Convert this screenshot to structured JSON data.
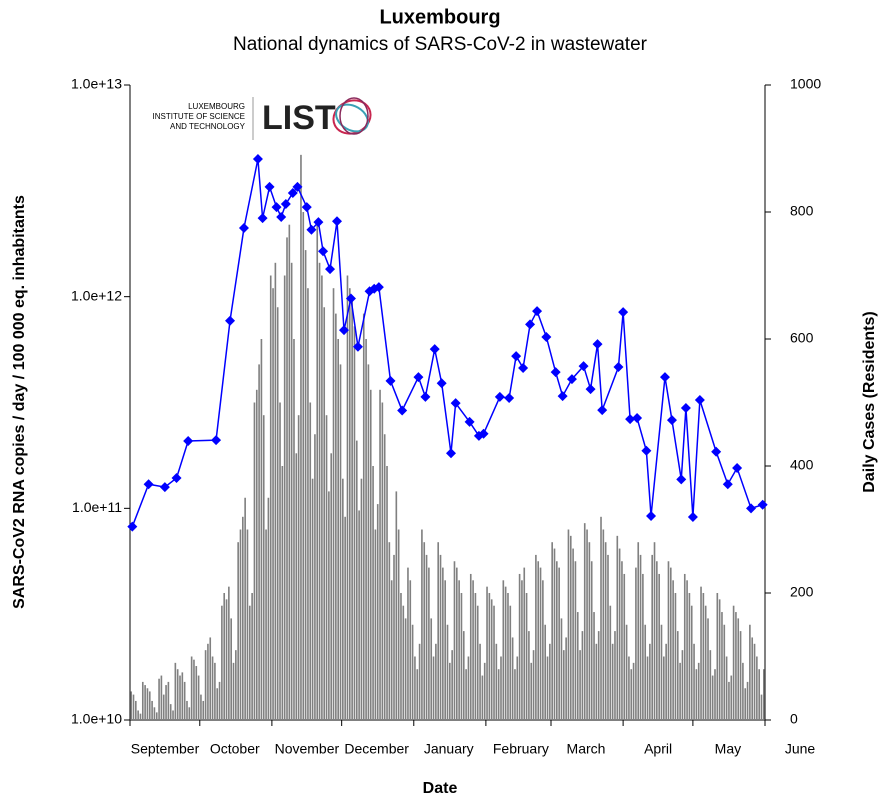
{
  "chart_data": {
    "type": "combo",
    "title": "Luxembourg",
    "subtitle": "National dynamics of SARS-CoV-2 in wastewater",
    "x_label": "Date",
    "y_label": "SARS-CoV2 RNA copies / day  / 100 000 eq. inhabitants",
    "y2_label": "Daily Cases (Residents)",
    "ylog": true,
    "ylim": [
      10000000000,
      10000000000000
    ],
    "yticks": [
      {
        "value": 10000000000,
        "label": "1.0e+10"
      },
      {
        "value": 100000000000,
        "label": "1.0e+11"
      },
      {
        "value": 1000000000000,
        "label": "1.0e+12"
      },
      {
        "value": 10000000000000,
        "label": "1.0e+13"
      }
    ],
    "y2lim": [
      0,
      1000
    ],
    "y2ticks": [
      0,
      200,
      400,
      600,
      800,
      1000
    ],
    "xlim": [
      0,
      273
    ],
    "xticks": [
      {
        "value": 0,
        "label": "September"
      },
      {
        "value": 30,
        "label": "October"
      },
      {
        "value": 61,
        "label": "November"
      },
      {
        "value": 91,
        "label": "December"
      },
      {
        "value": 122,
        "label": "January"
      },
      {
        "value": 153,
        "label": "February"
      },
      {
        "value": 181,
        "label": "March"
      },
      {
        "value": 212,
        "label": "April"
      },
      {
        "value": 242,
        "label": "May"
      },
      {
        "value": 273,
        "label": "June"
      }
    ],
    "series": [
      {
        "type": "bar",
        "axis": "y2",
        "color": "#808080",
        "values": [
          45,
          40,
          30,
          15,
          10,
          60,
          55,
          50,
          45,
          30,
          20,
          12,
          65,
          70,
          40,
          55,
          60,
          25,
          15,
          90,
          80,
          70,
          75,
          60,
          30,
          20,
          100,
          95,
          85,
          70,
          40,
          30,
          110,
          120,
          130,
          100,
          90,
          50,
          60,
          180,
          200,
          190,
          210,
          160,
          90,
          110,
          280,
          300,
          320,
          350,
          300,
          180,
          200,
          500,
          520,
          560,
          600,
          480,
          300,
          350,
          700,
          680,
          720,
          650,
          500,
          400,
          700,
          760,
          780,
          720,
          600,
          420,
          480,
          890,
          800,
          740,
          680,
          500,
          380,
          450,
          780,
          720,
          700,
          650,
          480,
          360,
          420,
          680,
          640,
          600,
          560,
          380,
          320,
          700,
          680,
          660,
          620,
          440,
          330,
          380,
          640,
          600,
          560,
          520,
          400,
          300,
          340,
          520,
          500,
          450,
          400,
          280,
          220,
          260,
          360,
          300,
          200,
          180,
          160,
          240,
          220,
          150,
          100,
          80,
          120,
          300,
          280,
          260,
          240,
          160,
          100,
          120,
          280,
          260,
          240,
          220,
          150,
          90,
          110,
          250,
          240,
          220,
          200,
          140,
          80,
          100,
          230,
          220,
          200,
          180,
          120,
          70,
          90,
          210,
          200,
          190,
          180,
          120,
          80,
          100,
          220,
          210,
          200,
          180,
          130,
          80,
          100,
          230,
          220,
          240,
          200,
          140,
          90,
          110,
          260,
          250,
          240,
          220,
          150,
          100,
          120,
          280,
          270,
          250,
          240,
          160,
          110,
          130,
          300,
          290,
          270,
          250,
          170,
          110,
          140,
          310,
          300,
          280,
          250,
          170,
          120,
          140,
          320,
          300,
          280,
          260,
          180,
          120,
          140,
          290,
          270,
          250,
          230,
          150,
          100,
          80,
          90,
          240,
          280,
          260,
          230,
          150,
          100,
          120,
          260,
          280,
          250,
          230,
          150,
          100,
          120,
          250,
          240,
          220,
          200,
          140,
          90,
          110,
          230,
          220,
          200,
          180,
          120,
          80,
          90,
          210,
          200,
          180,
          160,
          110,
          70,
          80,
          200,
          190,
          170,
          150,
          100,
          60,
          70,
          180,
          170,
          160,
          140,
          90,
          50,
          60,
          150,
          130,
          120,
          100,
          80,
          40,
          80
        ]
      },
      {
        "type": "line",
        "color": "#0000ff",
        "x": [
          1,
          8,
          15,
          20,
          25,
          37,
          43,
          49,
          55,
          57,
          60,
          63,
          65,
          67,
          70,
          72,
          76,
          78,
          81,
          83,
          86,
          89,
          92,
          95,
          98,
          103,
          105,
          107,
          112,
          117,
          124,
          127,
          131,
          134,
          138,
          140,
          146,
          150,
          152,
          159,
          163,
          166,
          169,
          172,
          175,
          179,
          183,
          186,
          190,
          195,
          198,
          201,
          203,
          210,
          212,
          215,
          218,
          222,
          224,
          230,
          233,
          237,
          239,
          242,
          245,
          252,
          257,
          261,
          267,
          272
        ],
        "values": [
          82000000000,
          130000000000,
          126000000000,
          139000000000,
          208000000000,
          210000000000,
          770000000000,
          2110000000000,
          4470000000000,
          2350000000000,
          3300000000000,
          2650000000000,
          2380000000000,
          2740000000000,
          3090000000000,
          3300000000000,
          2650000000000,
          2070000000000,
          2250000000000,
          1640000000000,
          1350000000000,
          2270000000000,
          695000000000,
          980000000000,
          580000000000,
          1060000000000,
          1090000000000,
          1110000000000,
          400000000000,
          290000000000,
          417000000000,
          336000000000,
          565000000000,
          390000000000,
          182000000000,
          314000000000,
          256000000000,
          220000000000,
          225000000000,
          336000000000,
          332000000000,
          524000000000,
          460000000000,
          740000000000,
          855000000000,
          645000000000,
          440000000000,
          339000000000,
          408000000000,
          470000000000,
          366000000000,
          597000000000,
          291000000000,
          465000000000,
          845000000000,
          264000000000,
          267000000000,
          187000000000,
          92000000000,
          417000000000,
          261000000000,
          137000000000,
          298000000000,
          91000000000,
          325000000000,
          185000000000,
          130000000000,
          155000000000,
          100000000000,
          104000000000
        ]
      }
    ]
  },
  "logo": {
    "lines": [
      "LUXEMBOURG",
      "INSTITUTE OF SCIENCE",
      "AND TECHNOLOGY"
    ],
    "name": "LIST"
  }
}
